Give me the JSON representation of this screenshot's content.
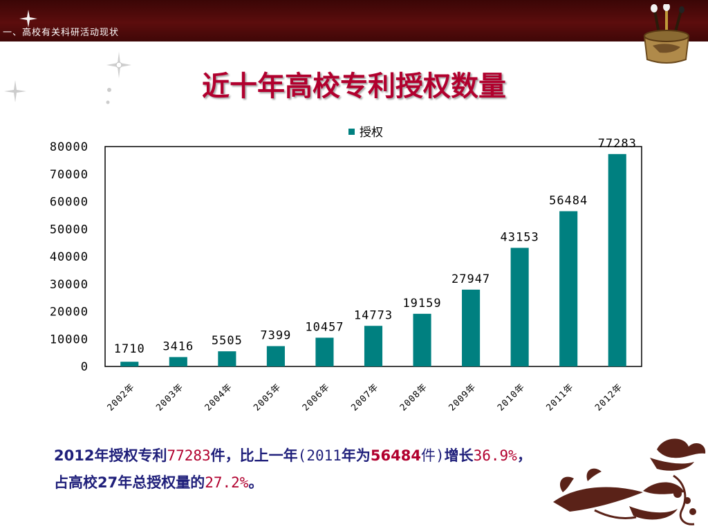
{
  "header": {
    "section_label": "一、高校有关科研活动现状"
  },
  "title": "近十年高校专利授权数量",
  "chart_data": {
    "type": "bar",
    "title": "",
    "xlabel": "",
    "ylabel": "",
    "categories": [
      "2002年",
      "2003年",
      "2004年",
      "2005年",
      "2006年",
      "2007年",
      "2008年",
      "2009年",
      "2010年",
      "2011年",
      "2012年"
    ],
    "series": [
      {
        "name": "授权",
        "values": [
          1710,
          3416,
          5505,
          7399,
          10457,
          14773,
          19159,
          27947,
          43153,
          56484,
          77283
        ],
        "color": "#008080"
      }
    ],
    "ylim": [
      0,
      80000
    ],
    "yticks": [
      0,
      10000,
      20000,
      30000,
      40000,
      50000,
      60000,
      70000,
      80000
    ],
    "grid": false,
    "legend_position": "top-center",
    "data_labels": true
  },
  "summary": {
    "line1_a": "2012年授权专利",
    "line1_b": "77283",
    "line1_c": "件，比上一年",
    "line1_d": "(2011",
    "line1_e": "年为",
    "line1_f": "56484",
    "line1_g": "件)",
    "line1_h": "增长",
    "line1_i": "36.9%",
    "line1_j": "，",
    "line2_a": "占高校27年总授权量的",
    "line2_b": "27.2%",
    "line2_c": "。"
  },
  "colors": {
    "accent": "#b1002e",
    "bar": "#008080",
    "text_blue": "#1f1f7a",
    "header": "#4a0909"
  }
}
